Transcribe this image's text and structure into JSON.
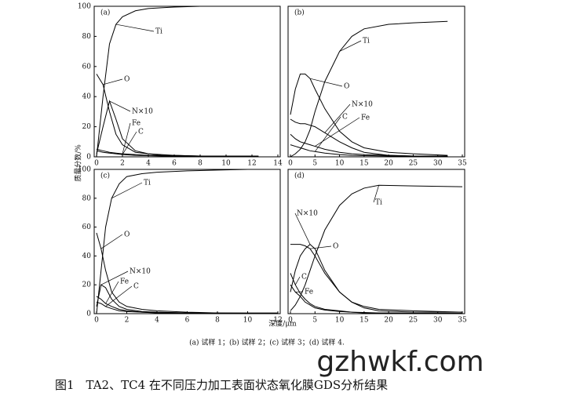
{
  "figure": {
    "y_label": "质量分数/%",
    "x_label": "深度/μm",
    "caption": "(a) 试样 1；(b) 试样 2；(c) 试样 3；(d) 试样 4.",
    "watermark": "gzhwkf.com",
    "title": "图1　TA2、TC4 在不同压力加工表面状态氧化膜GDS分析结果"
  },
  "chart_data": [
    {
      "type": "line",
      "panel_label": "(a)",
      "x": [
        0,
        0.5,
        1,
        1.5,
        2,
        3,
        4,
        5,
        6,
        8,
        10,
        12.5
      ],
      "xlim": [
        0,
        14
      ],
      "ylim": [
        0,
        100
      ],
      "xticks": [
        0,
        2,
        4,
        6,
        8,
        10,
        12,
        14
      ],
      "yticks": [
        0,
        20,
        40,
        60,
        80,
        100
      ],
      "series": [
        {
          "name": "Ti",
          "color": "#000",
          "values": [
            0,
            40,
            75,
            88,
            93,
            97,
            98.5,
            99,
            99.5,
            100,
            100,
            100
          ]
        },
        {
          "name": "O",
          "color": "#000",
          "values": [
            55,
            48,
            30,
            15,
            8,
            3,
            2,
            1.5,
            1,
            0.5,
            0.5,
            0.5
          ]
        },
        {
          "name": "N×10",
          "color": "#000",
          "values": [
            2,
            20,
            37,
            25,
            12,
            4,
            2,
            1,
            1,
            0.5,
            0.5,
            0.5
          ]
        },
        {
          "name": "Fe",
          "color": "#000",
          "values": [
            5,
            4,
            3,
            2.5,
            2,
            1.5,
            1,
            0.8,
            0.5,
            0.3,
            0.2,
            0.2
          ]
        },
        {
          "name": "C",
          "color": "#000",
          "values": [
            4,
            3,
            2.5,
            2,
            1.5,
            1,
            0.8,
            0.5,
            0.5,
            0.3,
            0.2,
            0.2
          ]
        }
      ]
    },
    {
      "type": "line",
      "panel_label": "(b)",
      "x": [
        0,
        1,
        2,
        3,
        4,
        5,
        7,
        10,
        12.5,
        15,
        20,
        25,
        32
      ],
      "xlim": [
        0,
        35
      ],
      "ylim": [
        0,
        100
      ],
      "xticks": [
        0,
        5,
        10,
        15,
        20,
        25,
        30,
        35
      ],
      "series": [
        {
          "name": "Ti",
          "color": "#000",
          "values": [
            0,
            2,
            5,
            10,
            18,
            30,
            50,
            70,
            80,
            85,
            88,
            89,
            90
          ]
        },
        {
          "name": "O",
          "color": "#000",
          "values": [
            28,
            45,
            55,
            55,
            52,
            45,
            32,
            17,
            10,
            6,
            3,
            2,
            1
          ]
        },
        {
          "name": "N×10",
          "color": "#000",
          "values": [
            25,
            23,
            22,
            22,
            21,
            20,
            16,
            10,
            6,
            3,
            1,
            0.5,
            0.5
          ]
        },
        {
          "name": "C",
          "color": "#000",
          "values": [
            8,
            7,
            6,
            5,
            4,
            3.5,
            2.5,
            1.5,
            1,
            0.8,
            0.5,
            0.3,
            0.3
          ]
        },
        {
          "name": "Fe",
          "color": "#000",
          "values": [
            15,
            12,
            10,
            9,
            8,
            7,
            5,
            3,
            2,
            1.5,
            1,
            0.5,
            0.5
          ]
        }
      ]
    },
    {
      "type": "line",
      "panel_label": "(c)",
      "x": [
        0,
        0.3,
        0.6,
        1,
        1.5,
        2,
        3,
        4,
        6,
        8,
        10,
        12
      ],
      "xlim": [
        0,
        12
      ],
      "ylim": [
        0,
        100
      ],
      "xticks": [
        0,
        2,
        4,
        6,
        8,
        10,
        12
      ],
      "yticks": [
        0,
        20,
        40,
        60,
        80,
        100
      ],
      "series": [
        {
          "name": "Ti",
          "color": "#000",
          "values": [
            0,
            30,
            60,
            80,
            90,
            95,
            97,
            98,
            99,
            99.5,
            100,
            100
          ]
        },
        {
          "name": "O",
          "color": "#000",
          "values": [
            56,
            45,
            30,
            15,
            8,
            5,
            3,
            2,
            1,
            0.5,
            0.5,
            0.5
          ]
        },
        {
          "name": "N×10",
          "color": "#000",
          "values": [
            5,
            20,
            18,
            10,
            5,
            3,
            1.5,
            1,
            0.5,
            0.5,
            0.3,
            0.3
          ]
        },
        {
          "name": "Fe",
          "color": "#000",
          "values": [
            12,
            10,
            7,
            5,
            3,
            2,
            1,
            0.8,
            0.5,
            0.3,
            0.2,
            0.2
          ]
        },
        {
          "name": "C",
          "color": "#000",
          "values": [
            8,
            7,
            5,
            3.5,
            2,
            1.5,
            1,
            0.5,
            0.3,
            0.2,
            0.2,
            0.2
          ]
        }
      ]
    },
    {
      "type": "line",
      "panel_label": "(d)",
      "x": [
        0,
        1,
        2,
        3,
        4,
        5,
        7,
        10,
        12.5,
        15,
        18,
        25,
        35
      ],
      "xlim": [
        0,
        35
      ],
      "ylim": [
        0,
        100
      ],
      "xticks": [
        0,
        5,
        10,
        15,
        20,
        25,
        30,
        35
      ],
      "series": [
        {
          "name": "Ti",
          "color": "#000",
          "values": [
            2,
            6,
            12,
            20,
            30,
            40,
            58,
            75,
            83,
            87,
            89,
            88.5,
            88
          ]
        },
        {
          "name": "N×10",
          "color": "#000",
          "values": [
            15,
            30,
            40,
            45,
            48,
            45,
            30,
            15,
            8,
            4,
            2,
            1,
            1
          ]
        },
        {
          "name": "O",
          "color": "#000",
          "values": [
            48,
            48,
            48,
            47,
            45,
            40,
            28,
            15,
            8,
            5,
            3,
            2,
            1
          ]
        },
        {
          "name": "C",
          "color": "#000",
          "values": [
            28,
            20,
            14,
            10,
            7,
            5,
            3,
            2,
            1,
            0.8,
            0.5,
            0.3,
            0.3
          ]
        },
        {
          "name": "Fe",
          "color": "#000",
          "values": [
            20,
            15,
            12,
            8,
            6,
            4,
            2.5,
            1.5,
            1,
            0.5,
            0.5,
            0.3,
            0.3
          ]
        }
      ]
    }
  ]
}
